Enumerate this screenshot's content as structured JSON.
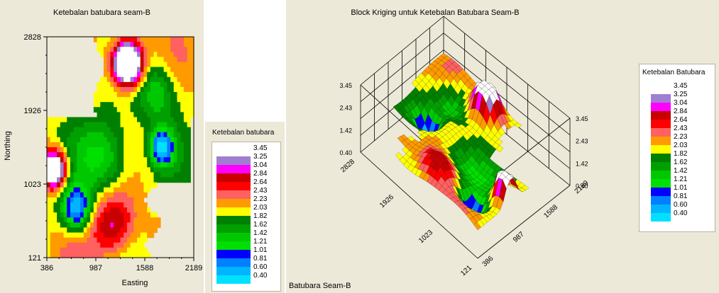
{
  "palette": [
    "#ffffff",
    "#a07ed0",
    "#ff00ff",
    "#c80000",
    "#ff0000",
    "#ff6060",
    "#ff9a00",
    "#ffff00",
    "#008000",
    "#00a000",
    "#00c800",
    "#00e000",
    "#0000ff",
    "#0080ff",
    "#00b4ff",
    "#00e0ff"
  ],
  "chart_data": [
    {
      "type": "heatmap",
      "title": "Ketebalan batubara seam-B",
      "xlabel": "Easting",
      "ylabel": "Northing",
      "x_ticks": [
        386,
        987,
        1588,
        2189
      ],
      "y_ticks": [
        121,
        1023,
        1926,
        2828
      ],
      "xlim": [
        386,
        2189
      ],
      "ylim": [
        121,
        2828
      ],
      "legend_title": "Ketebalan batubara",
      "legend_values": [
        "3.45",
        "3.25",
        "3.04",
        "2.84",
        "2.64",
        "2.43",
        "2.23",
        "2.03",
        "1.82",
        "1.62",
        "1.42",
        "1.21",
        "1.01",
        "0.81",
        "0.60",
        "0.40"
      ]
    },
    {
      "type": "surface",
      "title": "Block Kriging untuk Ketebalan Batubara Seam-B",
      "legend_title": "Ketebalan Batubara",
      "legend_values": [
        "3.45",
        "3.25",
        "3.04",
        "2.84",
        "2.64",
        "2.43",
        "2.23",
        "2.03",
        "1.82",
        "1.62",
        "1.42",
        "1.21",
        "1.01",
        "0.81",
        "0.60",
        "0.40"
      ],
      "z_ticks": [
        "0.40",
        "1.42",
        "2.43",
        "3.45"
      ],
      "front_axis_ticks": [
        "121",
        "1023",
        "1926",
        "2828"
      ],
      "right_axis_ticks": [
        "386",
        "987",
        "1588",
        "2189"
      ]
    }
  ],
  "footer_label": "Batubara Seam-B"
}
